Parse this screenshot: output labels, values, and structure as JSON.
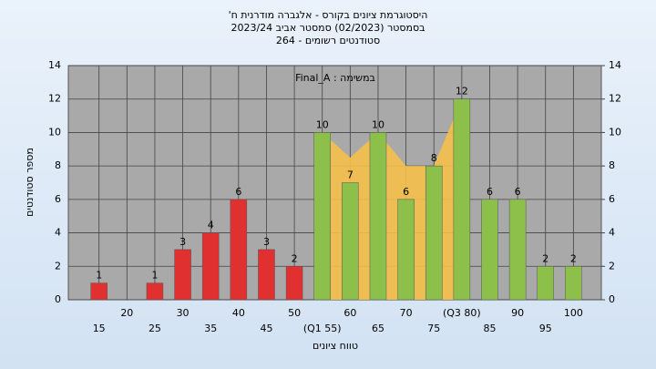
{
  "chart_data": {
    "type": "bar",
    "title": [
      "היסטוגרמת ציונים בקורס - אלגברה מודרנית ח'",
      "בסמסטר (02/2023) סמסטר אביב 2023/24",
      "סטודנטים רשומים - 264"
    ],
    "annotation": "במשימה : Final_A",
    "ylabel": "מספר סטודנטים",
    "xlabel": "טווח ציונים",
    "x": [
      15,
      20,
      25,
      30,
      35,
      40,
      45,
      50,
      55,
      60,
      65,
      70,
      75,
      80,
      85,
      90,
      95,
      100
    ],
    "values": [
      1,
      0,
      1,
      3,
      4,
      6,
      3,
      2,
      10,
      7,
      10,
      6,
      8,
      12,
      6,
      6,
      2,
      2
    ],
    "colors": [
      "#e03030",
      "#e03030",
      "#e03030",
      "#e03030",
      "#e03030",
      "#e03030",
      "#e03030",
      "#e03030",
      "#8cc04a",
      "#8cc04a",
      "#8cc04a",
      "#8cc04a",
      "#8cc04a",
      "#8cc04a",
      "#8cc04a",
      "#8cc04a",
      "#8cc04a",
      "#8cc04a"
    ],
    "band": {
      "color": "#f5c04a",
      "x": [
        55,
        60,
        65,
        70,
        75,
        80
      ],
      "values": [
        10,
        8.5,
        10,
        8,
        8,
        12
      ]
    },
    "xlim": [
      9.5,
      105
    ],
    "xticks": [
      15,
      20,
      25,
      30,
      35,
      40,
      45,
      50,
      {
        "value": 55,
        "label": "(Q1 55)"
      },
      60,
      65,
      70,
      75,
      {
        "value": 80,
        "label": "(Q3 80)"
      },
      85,
      90,
      95,
      100
    ],
    "ylim": [
      0,
      14
    ],
    "yticks": [
      0,
      2,
      4,
      6,
      8,
      10,
      12,
      14
    ],
    "y2lim": [
      0,
      14
    ],
    "y2ticks": [
      0,
      2,
      4,
      6,
      8,
      10,
      12,
      14
    ],
    "grid": true
  }
}
